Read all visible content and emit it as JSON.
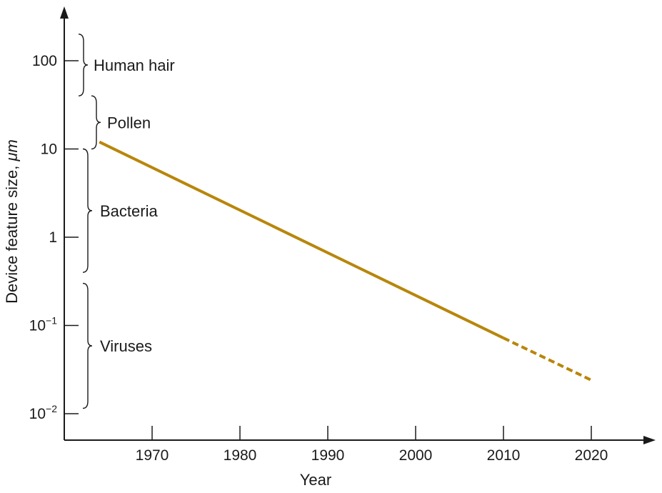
{
  "chart_data": {
    "type": "line",
    "title": "",
    "xlabel": "Year",
    "ylabel": "Device feature size, μm",
    "ylabel_text": "Device feature size, ",
    "ylabel_unit": "μm",
    "y_scale": "log",
    "xlim": [
      1960,
      2026
    ],
    "ylim": [
      0.0055,
      300
    ],
    "x_ticks": [
      1970,
      1980,
      1990,
      2000,
      2010,
      2020
    ],
    "x_tick_labels": [
      "1970",
      "1980",
      "1990",
      "2000",
      "2010",
      "2020"
    ],
    "y_ticks": [
      {
        "value": 100,
        "label": "100",
        "base": "",
        "exp": ""
      },
      {
        "value": 10,
        "label": "10",
        "base": "",
        "exp": ""
      },
      {
        "value": 1,
        "label": "1",
        "base": "",
        "exp": ""
      },
      {
        "value": 0.1,
        "label": "",
        "base": "10",
        "exp": "−1"
      },
      {
        "value": 0.01,
        "label": "",
        "base": "10",
        "exp": "−2"
      }
    ],
    "series": [
      {
        "color": "#b8860b",
        "style": "solid",
        "x": [
          1964,
          2010
        ],
        "y": [
          12,
          0.072
        ]
      },
      {
        "color": "#b8860b",
        "style": "dashed",
        "x": [
          2010,
          2020
        ],
        "y": [
          0.072,
          0.024
        ]
      }
    ],
    "size_ranges": [
      {
        "label": "Human hair",
        "y_low": 40,
        "y_high": 200
      },
      {
        "label": "Pollen",
        "y_low": 10,
        "y_high": 40
      },
      {
        "label": "Bacteria",
        "y_low": 0.4,
        "y_high": 10
      },
      {
        "label": "Viruses",
        "y_low": 0.0115,
        "y_high": 0.3
      }
    ],
    "grid": false,
    "legend": "none"
  }
}
